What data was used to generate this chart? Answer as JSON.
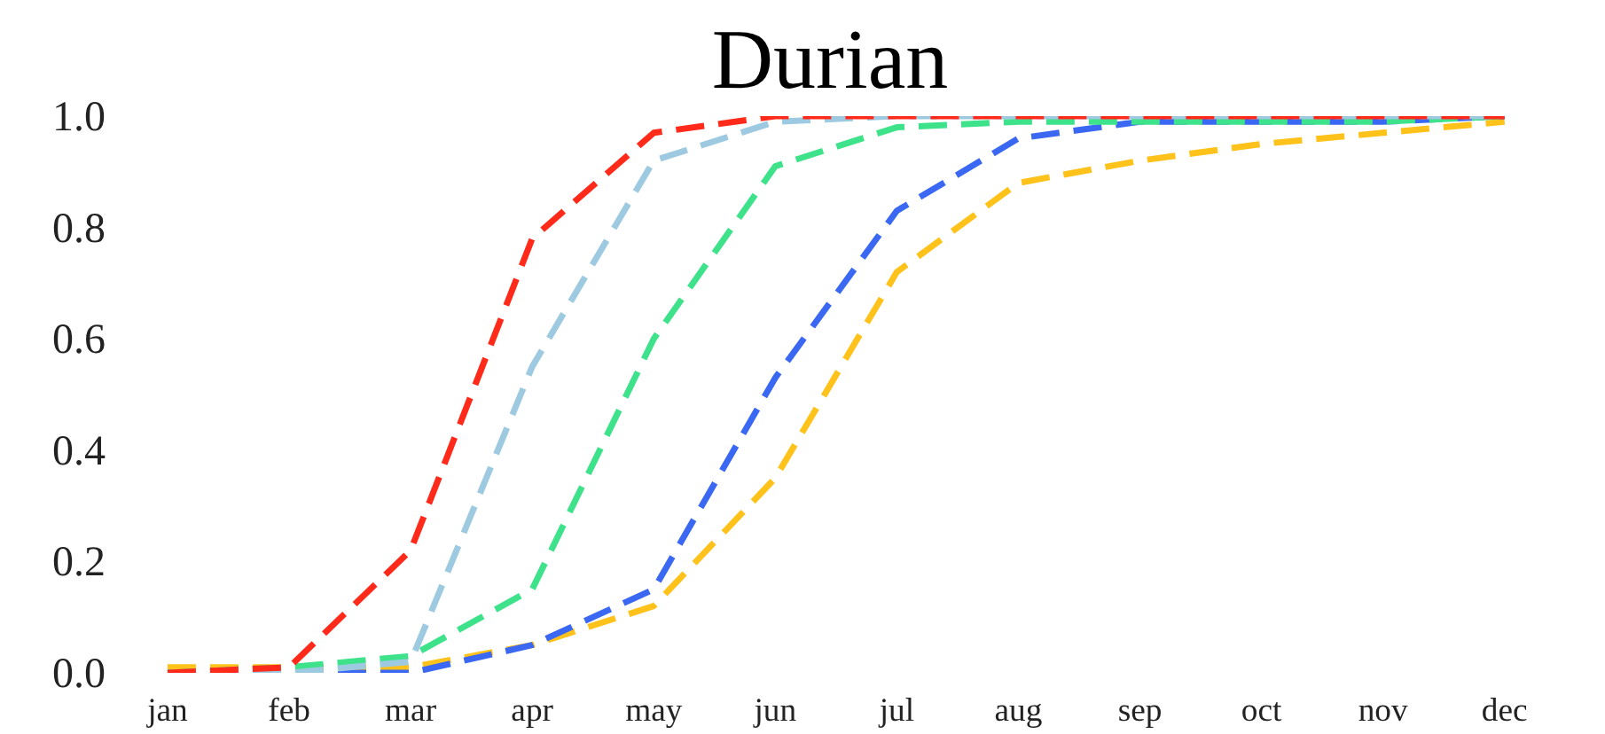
{
  "chart_data": {
    "type": "line",
    "title": "Durian",
    "categories": [
      "jan",
      "feb",
      "mar",
      "apr",
      "may",
      "jun",
      "jul",
      "aug",
      "sep",
      "oct",
      "nov",
      "dec"
    ],
    "ylim": [
      0,
      1.0
    ],
    "yticks": [
      {
        "value": 0,
        "label": "0.0"
      },
      {
        "value": 0.2,
        "label": "0.2"
      },
      {
        "value": 0.4,
        "label": "0.4"
      },
      {
        "value": 0.6,
        "label": "0.6"
      },
      {
        "value": 0.8,
        "label": "0.8"
      },
      {
        "value": 1.0,
        "label": "1.0"
      }
    ],
    "grid": false,
    "line_style": "dashed",
    "marker": "none",
    "series": [
      {
        "color": "#ffc21a",
        "values": [
          0.01,
          0.01,
          0.01,
          0.05,
          0.12,
          0.35,
          0.72,
          0.88,
          0.92,
          0.95,
          0.97,
          0.99
        ]
      },
      {
        "color": "#3a68f2",
        "values": [
          0.0,
          0.0,
          0.0,
          0.05,
          0.15,
          0.53,
          0.83,
          0.96,
          0.99,
          0.99,
          0.99,
          1.0
        ]
      },
      {
        "color": "#3de28a",
        "values": [
          0.0,
          0.01,
          0.03,
          0.15,
          0.6,
          0.91,
          0.98,
          0.99,
          0.99,
          0.99,
          0.99,
          1.0
        ]
      },
      {
        "color": "#9ecae1",
        "values": [
          0.0,
          0.0,
          0.02,
          0.55,
          0.92,
          0.99,
          1.0,
          1.0,
          1.0,
          1.0,
          1.0,
          1.0
        ]
      },
      {
        "color": "#ff2a1a",
        "values": [
          0.0,
          0.01,
          0.22,
          0.78,
          0.97,
          1.0,
          1.0,
          1.0,
          1.0,
          1.0,
          1.0,
          1.0
        ]
      }
    ]
  }
}
